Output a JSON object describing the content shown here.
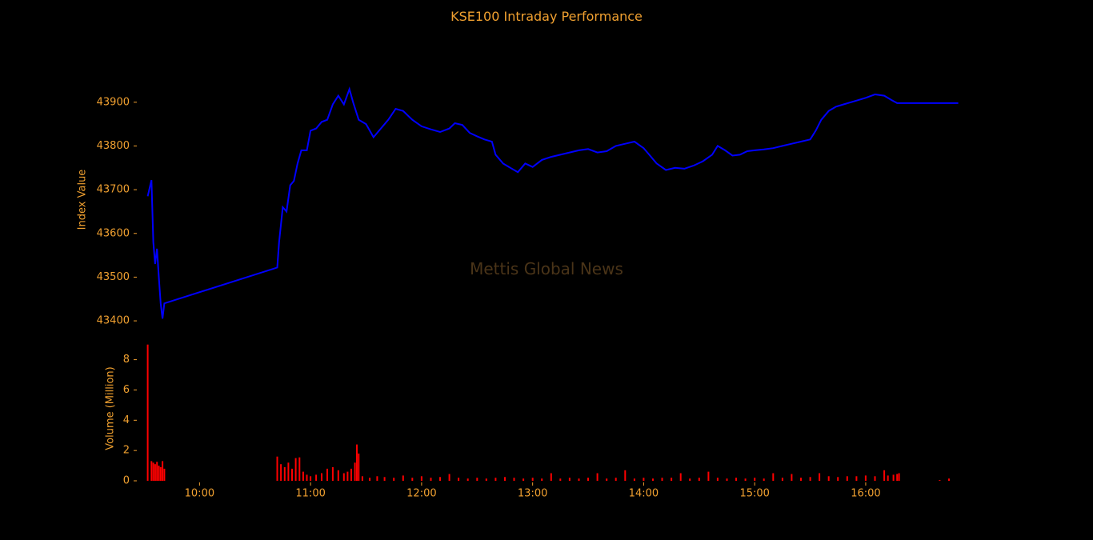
{
  "chart_data": [
    {
      "type": "line",
      "title": "KSE100 Intraday Performance",
      "ylabel": "Index Value",
      "ylim": [
        43380,
        43960
      ],
      "yticks": [
        43400,
        43500,
        43600,
        43700,
        43800,
        43900
      ],
      "line_color": "#0000ff",
      "series": [
        {
          "values": [
            [
              "09:32",
              43685
            ],
            [
              "09:34",
              43722
            ],
            [
              "09:35",
              43580
            ],
            [
              "09:36",
              43530
            ],
            [
              "09:37",
              43565
            ],
            [
              "09:38",
              43500
            ],
            [
              "09:39",
              43440
            ],
            [
              "09:40",
              43405
            ],
            [
              "09:41",
              43440
            ],
            [
              "10:42",
              43522
            ],
            [
              "10:43",
              43580
            ],
            [
              "10:45",
              43660
            ],
            [
              "10:47",
              43650
            ],
            [
              "10:49",
              43710
            ],
            [
              "10:51",
              43720
            ],
            [
              "10:53",
              43760
            ],
            [
              "10:55",
              43790
            ],
            [
              "10:58",
              43790
            ],
            [
              "11:00",
              43835
            ],
            [
              "11:03",
              43840
            ],
            [
              "11:06",
              43855
            ],
            [
              "11:09",
              43860
            ],
            [
              "11:12",
              43895
            ],
            [
              "11:15",
              43915
            ],
            [
              "11:18",
              43895
            ],
            [
              "11:21",
              43930
            ],
            [
              "11:23",
              43900
            ],
            [
              "11:26",
              43860
            ],
            [
              "11:30",
              43850
            ],
            [
              "11:34",
              43820
            ],
            [
              "11:38",
              43840
            ],
            [
              "11:42",
              43860
            ],
            [
              "11:46",
              43885
            ],
            [
              "11:50",
              43880
            ],
            [
              "11:55",
              43860
            ],
            [
              "12:00",
              43845
            ],
            [
              "12:05",
              43838
            ],
            [
              "12:10",
              43832
            ],
            [
              "12:15",
              43840
            ],
            [
              "12:18",
              43852
            ],
            [
              "12:22",
              43848
            ],
            [
              "12:26",
              43830
            ],
            [
              "12:30",
              43822
            ],
            [
              "12:34",
              43815
            ],
            [
              "12:38",
              43810
            ],
            [
              "12:40",
              43780
            ],
            [
              "12:44",
              43760
            ],
            [
              "12:48",
              43750
            ],
            [
              "12:52",
              43740
            ],
            [
              "12:56",
              43760
            ],
            [
              "13:00",
              43752
            ],
            [
              "13:05",
              43768
            ],
            [
              "13:10",
              43775
            ],
            [
              "13:15",
              43780
            ],
            [
              "13:20",
              43785
            ],
            [
              "13:25",
              43790
            ],
            [
              "13:30",
              43793
            ],
            [
              "13:35",
              43785
            ],
            [
              "13:40",
              43788
            ],
            [
              "13:45",
              43800
            ],
            [
              "13:50",
              43805
            ],
            [
              "13:55",
              43810
            ],
            [
              "14:00",
              43795
            ],
            [
              "14:03",
              43780
            ],
            [
              "14:07",
              43760
            ],
            [
              "14:12",
              43745
            ],
            [
              "14:17",
              43750
            ],
            [
              "14:22",
              43748
            ],
            [
              "14:27",
              43755
            ],
            [
              "14:32",
              43765
            ],
            [
              "14:37",
              43780
            ],
            [
              "14:40",
              43800
            ],
            [
              "14:44",
              43790
            ],
            [
              "14:48",
              43778
            ],
            [
              "14:52",
              43780
            ],
            [
              "14:56",
              43788
            ],
            [
              "15:00",
              43790
            ],
            [
              "15:05",
              43792
            ],
            [
              "15:10",
              43795
            ],
            [
              "15:15",
              43800
            ],
            [
              "15:20",
              43805
            ],
            [
              "15:25",
              43810
            ],
            [
              "15:30",
              43815
            ],
            [
              "15:33",
              43835
            ],
            [
              "15:36",
              43860
            ],
            [
              "15:40",
              43880
            ],
            [
              "15:44",
              43890
            ],
            [
              "15:48",
              43895
            ],
            [
              "15:52",
              43900
            ],
            [
              "15:56",
              43905
            ],
            [
              "16:00",
              43910
            ],
            [
              "16:05",
              43918
            ],
            [
              "16:10",
              43915
            ],
            [
              "16:14",
              43905
            ],
            [
              "16:17",
              43898
            ],
            [
              "16:18",
              43898
            ],
            [
              "16:50",
              43898
            ]
          ]
        }
      ]
    },
    {
      "type": "bar",
      "ylabel": "Volume (Million)",
      "ylim": [
        0,
        9.3
      ],
      "yticks": [
        0,
        2,
        4,
        6,
        8
      ],
      "bar_color": "#ff0000",
      "xticks": [
        "10:00",
        "11:00",
        "12:00",
        "13:00",
        "14:00",
        "15:00",
        "16:00"
      ],
      "x_range": [
        "09:30",
        "16:45"
      ],
      "series": [
        {
          "values": [
            [
              "09:32",
              9.0
            ],
            [
              "09:34",
              1.3
            ],
            [
              "09:35",
              1.2
            ],
            [
              "09:36",
              1.1
            ],
            [
              "09:37",
              1.25
            ],
            [
              "09:38",
              1.0
            ],
            [
              "09:39",
              0.9
            ],
            [
              "09:40",
              1.3
            ],
            [
              "09:41",
              0.8
            ],
            [
              "10:42",
              1.6
            ],
            [
              "10:44",
              1.1
            ],
            [
              "10:46",
              0.9
            ],
            [
              "10:48",
              1.2
            ],
            [
              "10:50",
              0.8
            ],
            [
              "10:52",
              1.5
            ],
            [
              "10:54",
              1.55
            ],
            [
              "10:56",
              0.6
            ],
            [
              "10:58",
              0.4
            ],
            [
              "11:00",
              0.3
            ],
            [
              "11:03",
              0.4
            ],
            [
              "11:06",
              0.5
            ],
            [
              "11:09",
              0.8
            ],
            [
              "11:12",
              0.9
            ],
            [
              "11:15",
              0.7
            ],
            [
              "11:18",
              0.5
            ],
            [
              "11:20",
              0.6
            ],
            [
              "11:22",
              0.8
            ],
            [
              "11:24",
              1.2
            ],
            [
              "11:25",
              2.4
            ],
            [
              "11:26",
              1.8
            ],
            [
              "11:28",
              0.3
            ],
            [
              "11:32",
              0.2
            ],
            [
              "11:36",
              0.3
            ],
            [
              "11:40",
              0.25
            ],
            [
              "11:45",
              0.2
            ],
            [
              "11:50",
              0.35
            ],
            [
              "11:55",
              0.2
            ],
            [
              "12:00",
              0.3
            ],
            [
              "12:05",
              0.2
            ],
            [
              "12:10",
              0.25
            ],
            [
              "12:15",
              0.45
            ],
            [
              "12:20",
              0.2
            ],
            [
              "12:25",
              0.15
            ],
            [
              "12:30",
              0.2
            ],
            [
              "12:35",
              0.15
            ],
            [
              "12:40",
              0.2
            ],
            [
              "12:45",
              0.25
            ],
            [
              "12:50",
              0.2
            ],
            [
              "12:55",
              0.15
            ],
            [
              "13:00",
              0.2
            ],
            [
              "13:05",
              0.15
            ],
            [
              "13:10",
              0.5
            ],
            [
              "13:15",
              0.15
            ],
            [
              "13:20",
              0.2
            ],
            [
              "13:25",
              0.15
            ],
            [
              "13:30",
              0.2
            ],
            [
              "13:35",
              0.5
            ],
            [
              "13:40",
              0.15
            ],
            [
              "13:45",
              0.2
            ],
            [
              "13:50",
              0.7
            ],
            [
              "13:55",
              0.15
            ],
            [
              "14:00",
              0.2
            ],
            [
              "14:05",
              0.15
            ],
            [
              "14:10",
              0.2
            ],
            [
              "14:15",
              0.2
            ],
            [
              "14:20",
              0.5
            ],
            [
              "14:25",
              0.15
            ],
            [
              "14:30",
              0.2
            ],
            [
              "14:35",
              0.6
            ],
            [
              "14:40",
              0.2
            ],
            [
              "14:45",
              0.15
            ],
            [
              "14:50",
              0.2
            ],
            [
              "14:55",
              0.15
            ],
            [
              "15:00",
              0.2
            ],
            [
              "15:05",
              0.15
            ],
            [
              "15:10",
              0.5
            ],
            [
              "15:15",
              0.2
            ],
            [
              "15:20",
              0.45
            ],
            [
              "15:25",
              0.2
            ],
            [
              "15:30",
              0.25
            ],
            [
              "15:35",
              0.5
            ],
            [
              "15:40",
              0.3
            ],
            [
              "15:45",
              0.25
            ],
            [
              "15:50",
              0.3
            ],
            [
              "15:55",
              0.3
            ],
            [
              "16:00",
              0.35
            ],
            [
              "16:05",
              0.3
            ],
            [
              "16:10",
              0.7
            ],
            [
              "16:12",
              0.35
            ],
            [
              "16:15",
              0.4
            ],
            [
              "16:17",
              0.45
            ],
            [
              "16:18",
              0.5
            ],
            [
              "16:40",
              0.05
            ],
            [
              "16:45",
              0.15
            ]
          ]
        }
      ]
    }
  ],
  "watermark": "Mettis Global News",
  "colors": {
    "background": "#000000",
    "text": "#f0a030",
    "watermark": "#4a3418"
  }
}
